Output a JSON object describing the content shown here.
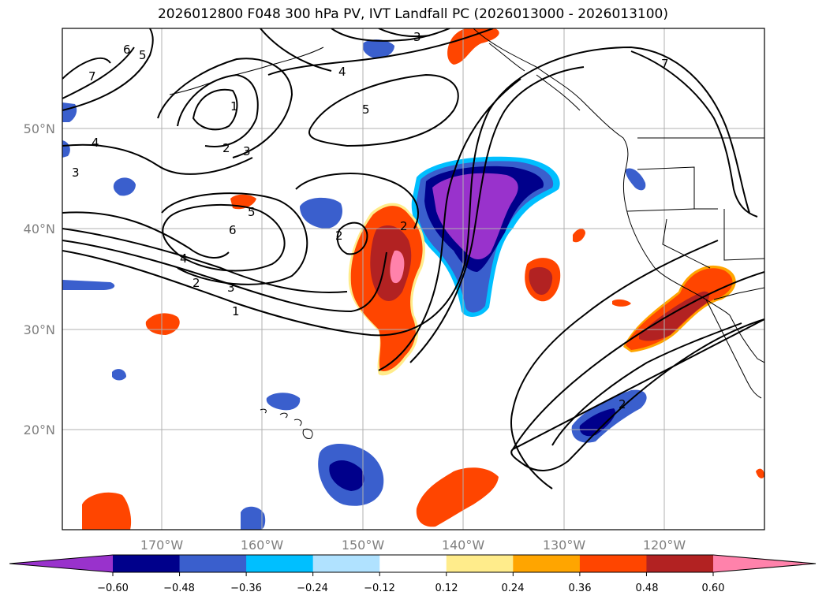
{
  "title": "2026012800 F048 300 hPa PV, IVT Landfall PC (2026013000 - 2026013100)",
  "lat_labels": [
    "50°N",
    "40°N",
    "30°N",
    "20°N"
  ],
  "lon_labels": [
    "170°W",
    "160°W",
    "150°W",
    "140°W",
    "130°W",
    "120°W"
  ],
  "colorbar": {
    "ticks": [
      "−0.60",
      "−0.48",
      "−0.36",
      "−0.24",
      "−0.12",
      "0.12",
      "0.24",
      "0.36",
      "0.48",
      "0.60"
    ],
    "colors": [
      "#9932cc",
      "#00008b",
      "#3a5fcd",
      "#00bfff",
      "#b0e2ff",
      "#ffffff",
      "#ffec8b",
      "#ffa500",
      "#ff4500",
      "#b22222",
      "#ff82ab"
    ]
  },
  "contour_labels": [
    "1",
    "2",
    "3",
    "4",
    "5",
    "6",
    "7",
    "3",
    "4",
    "5",
    "2",
    "6",
    "5",
    "4",
    "3",
    "2",
    "1",
    "2",
    "7"
  ]
}
